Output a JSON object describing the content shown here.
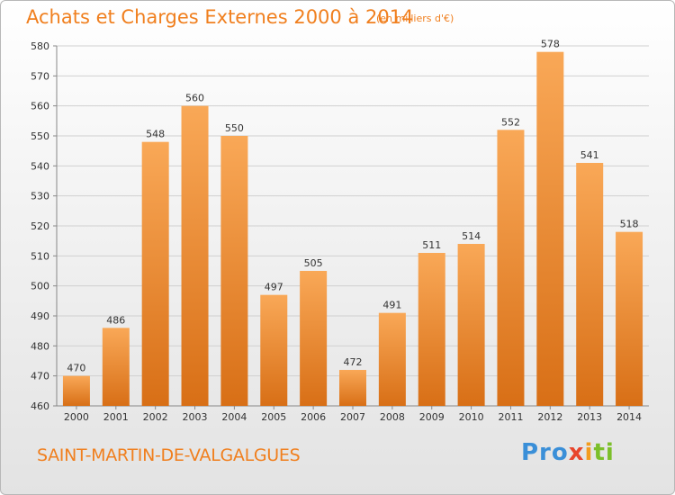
{
  "header": {
    "title": "Achats et Charges Externes 2000 à 2014",
    "unit": "(en milliers d'€)"
  },
  "footer": {
    "location": "SAINT-MARTIN-DE-VALGALGUES",
    "logo": {
      "p1": "Pro",
      "p2": "x",
      "p3": "i",
      "p4": "ti"
    }
  },
  "colors": {
    "bar_top": "#f9a857",
    "bar_bottom": "#d86f16",
    "accent": "#f07f1e",
    "grid": "#d0d0d0"
  },
  "chart_data": {
    "type": "bar",
    "title": "Achats et Charges Externes 2000 à 2014",
    "categories": [
      "2000",
      "2001",
      "2002",
      "2003",
      "2004",
      "2005",
      "2006",
      "2007",
      "2008",
      "2009",
      "2010",
      "2011",
      "2012",
      "2013",
      "2014"
    ],
    "values": [
      470,
      486,
      548,
      560,
      550,
      497,
      505,
      472,
      491,
      511,
      514,
      552,
      578,
      541,
      518
    ],
    "ylim": [
      460,
      580
    ],
    "yticks": [
      460,
      470,
      480,
      490,
      500,
      510,
      520,
      530,
      540,
      550,
      560,
      570,
      580
    ],
    "grid": true,
    "xlabel": "",
    "ylabel": ""
  }
}
